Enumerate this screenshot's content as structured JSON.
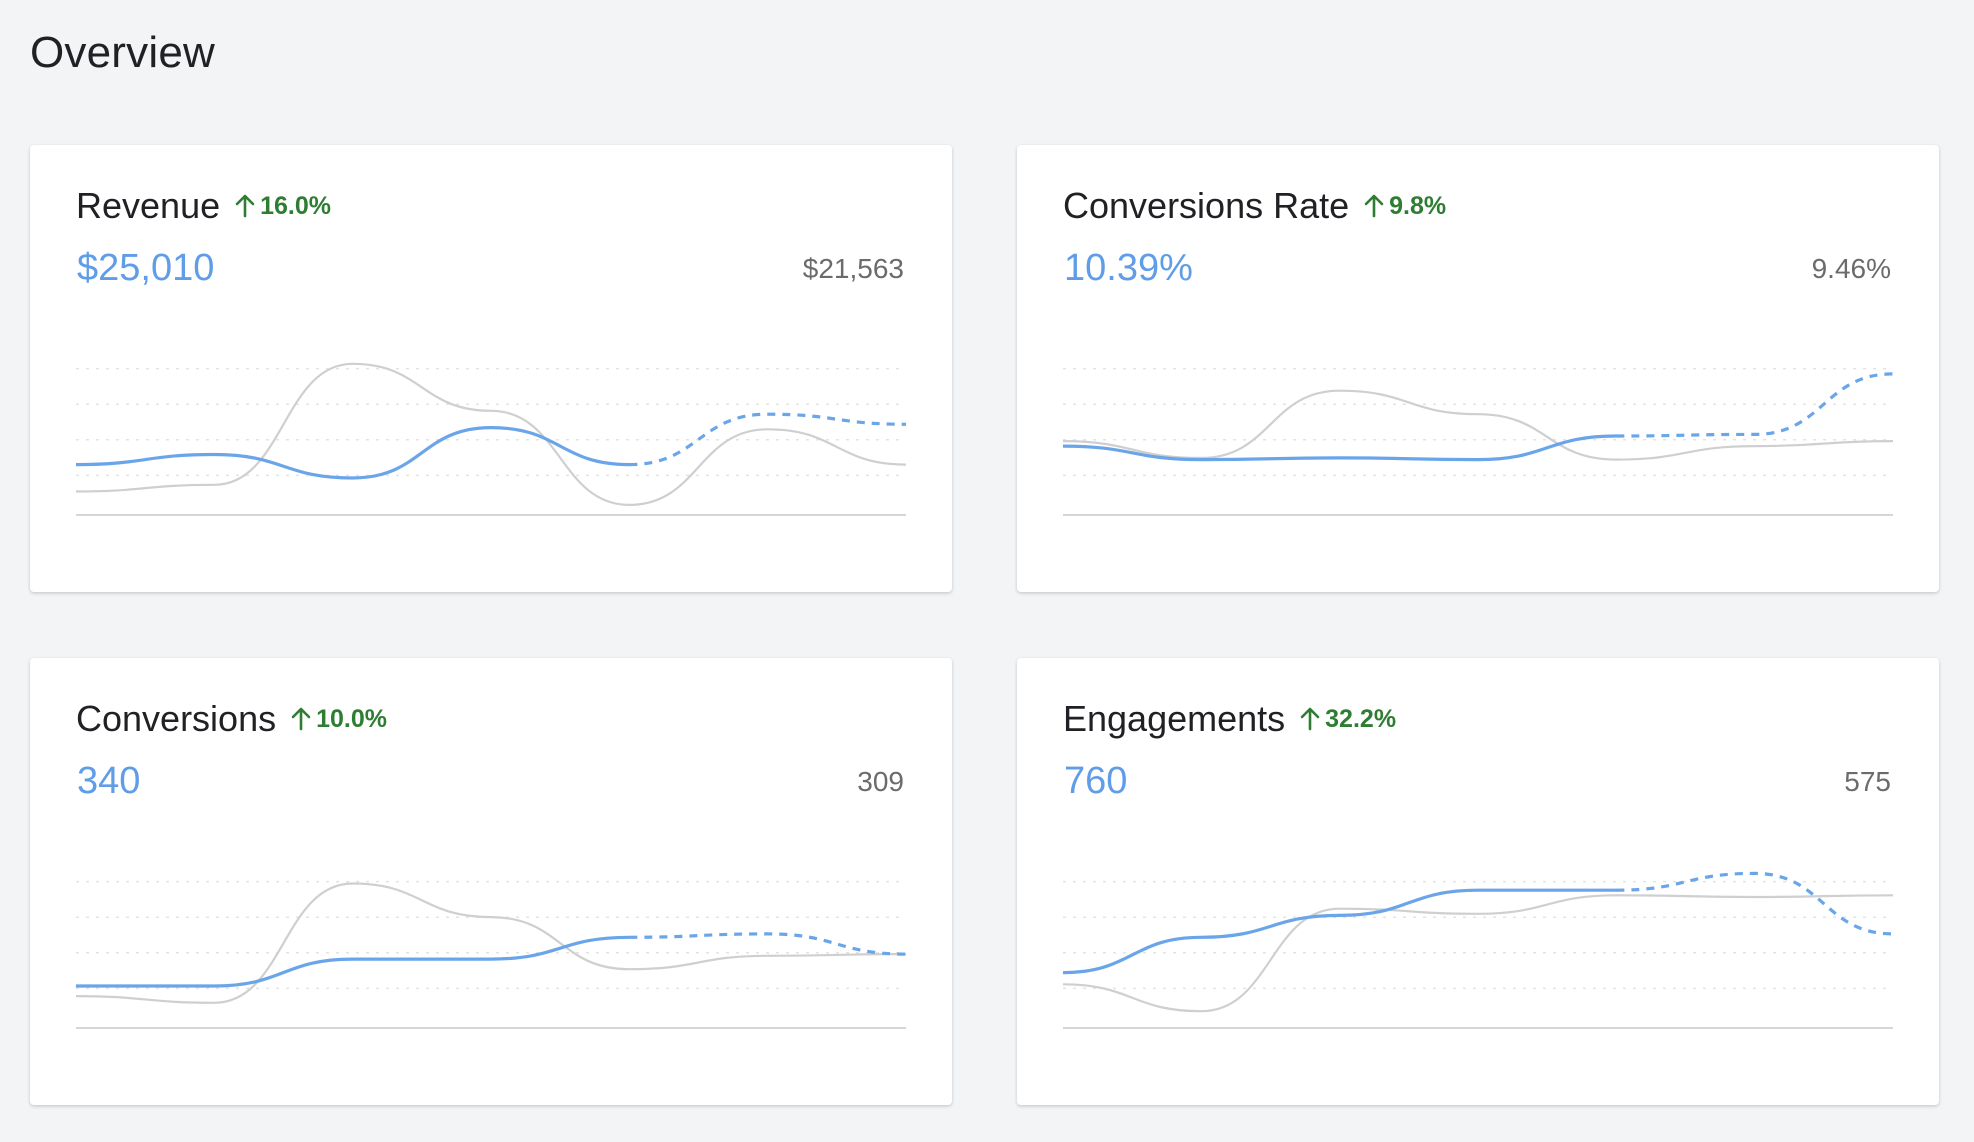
{
  "page": {
    "title": "Overview"
  },
  "colors": {
    "current": "#6aa5ea",
    "previous": "#cfcfcf",
    "positive": "#2e7d32",
    "value": "#5f9de8"
  },
  "chart_data": [
    {
      "type": "line",
      "title": "Revenue",
      "change": "16.0%",
      "value": "$25,010",
      "previous_total": "$21,563",
      "x": [
        0,
        1,
        2,
        3,
        4,
        5,
        6
      ],
      "ylim": [
        0,
        100
      ],
      "grid": true,
      "series": [
        {
          "values": [
            30,
            36,
            22,
            52,
            30,
            60,
            54
          ],
          "projected_from": 4
        },
        {
          "values": [
            14,
            18,
            90,
            62,
            6,
            51,
            30
          ]
        }
      ]
    },
    {
      "type": "line",
      "title": "Conversions Rate",
      "change": "9.8%",
      "value": "10.39%",
      "previous_total": "9.46%",
      "x": [
        0,
        1,
        2,
        3,
        4,
        5,
        6
      ],
      "ylim": [
        0,
        100
      ],
      "grid": true,
      "series": [
        {
          "values": [
            41,
            33,
            34,
            33,
            47,
            48,
            84
          ],
          "projected_from": 4
        },
        {
          "values": [
            44,
            34,
            74,
            60,
            33,
            41,
            44
          ]
        }
      ]
    },
    {
      "type": "line",
      "title": "Conversions",
      "change": "10.0%",
      "value": "340",
      "previous_total": "309",
      "x": [
        0,
        1,
        2,
        3,
        4,
        5,
        6
      ],
      "ylim": [
        0,
        100
      ],
      "grid": true,
      "series": [
        {
          "values": [
            25,
            25,
            41,
            41,
            54,
            56,
            44
          ],
          "projected_from": 4
        },
        {
          "values": [
            19,
            15,
            86,
            66,
            35,
            43,
            44
          ]
        }
      ]
    },
    {
      "type": "line",
      "title": "Engagements",
      "change": "32.2%",
      "value": "760",
      "previous_total": "575",
      "x": [
        0,
        1,
        2,
        3,
        4,
        5,
        6
      ],
      "ylim": [
        0,
        100
      ],
      "grid": true,
      "series": [
        {
          "values": [
            33,
            54,
            67,
            82,
            82,
            92,
            56
          ],
          "projected_from": 4
        },
        {
          "values": [
            26,
            10,
            71,
            68,
            79,
            78,
            79
          ]
        }
      ]
    }
  ]
}
